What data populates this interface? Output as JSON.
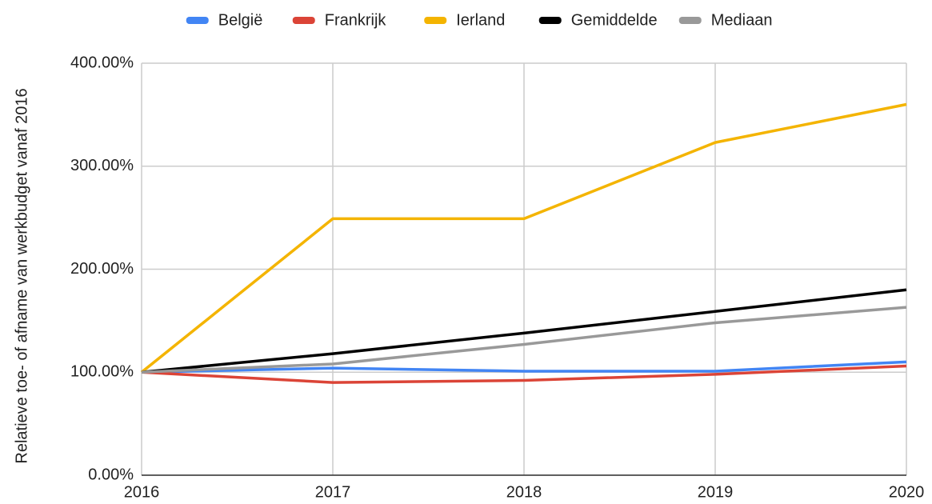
{
  "chart_data": {
    "type": "line",
    "y_label": "Relatieve toe- of afname van werkbudget vanaf 2016",
    "categories": [
      "2016",
      "2017",
      "2018",
      "2019",
      "2020"
    ],
    "series": [
      {
        "name": "België",
        "color": "#4285f4",
        "values": [
          100,
          104,
          101,
          101,
          110
        ]
      },
      {
        "name": "Frankrijk",
        "color": "#db4437",
        "values": [
          100,
          90,
          92,
          98,
          106
        ]
      },
      {
        "name": "Ierland",
        "color": "#f4b400",
        "values": [
          100,
          249,
          249,
          323,
          360
        ]
      },
      {
        "name": "Gemiddelde",
        "color": "#000000",
        "values": [
          100,
          118,
          138,
          159,
          180
        ]
      },
      {
        "name": "Mediaan",
        "color": "#999999",
        "values": [
          100,
          108,
          127,
          148,
          163
        ]
      }
    ],
    "ylim": [
      0,
      400
    ],
    "yticks": [
      {
        "value": 0,
        "label": "0.00%"
      },
      {
        "value": 100,
        "label": "100.00%"
      },
      {
        "value": 200,
        "label": "200.00%"
      },
      {
        "value": 300,
        "label": "300.00%"
      },
      {
        "value": 400,
        "label": "400.00%"
      }
    ],
    "grid": true,
    "legend": "top"
  }
}
